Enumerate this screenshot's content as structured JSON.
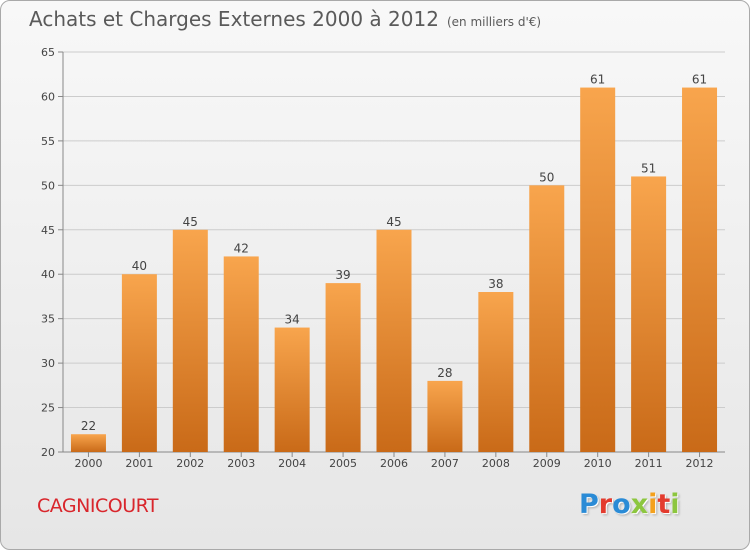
{
  "header": {
    "title": "Achats et Charges Externes 2000 à 2012",
    "subtitle": "(en milliers d'€)"
  },
  "footer": {
    "commune": "CAGNICOURT",
    "logo_text": "Proxiti",
    "logo_colors": [
      "#2a8bd6",
      "#e33b2e",
      "#2a8bd6",
      "#8cc63e",
      "#f4a11d",
      "#e33b2e",
      "#8cc63e"
    ]
  },
  "colors": {
    "bar_top": "#f8a54d",
    "bar_bottom": "#c96a18",
    "grid": "#cccccc",
    "label": "#444444",
    "commune": "#d9262c"
  },
  "chart_data": {
    "type": "bar",
    "categories": [
      "2000",
      "2001",
      "2002",
      "2003",
      "2004",
      "2005",
      "2006",
      "2007",
      "2008",
      "2009",
      "2010",
      "2011",
      "2012"
    ],
    "values": [
      22,
      40,
      45,
      42,
      34,
      39,
      45,
      28,
      38,
      50,
      61,
      51,
      61
    ],
    "data_labels": [
      "22",
      "40",
      "45",
      "42",
      "34",
      "39",
      "45",
      "28",
      "38",
      "50",
      "61",
      "51",
      "61"
    ],
    "y_ticks": [
      20,
      25,
      30,
      35,
      40,
      45,
      50,
      55,
      60,
      65
    ],
    "ylim": [
      20,
      65
    ],
    "grid": true,
    "title": "Achats et Charges Externes 2000 à 2012",
    "xlabel": "",
    "ylabel": ""
  }
}
